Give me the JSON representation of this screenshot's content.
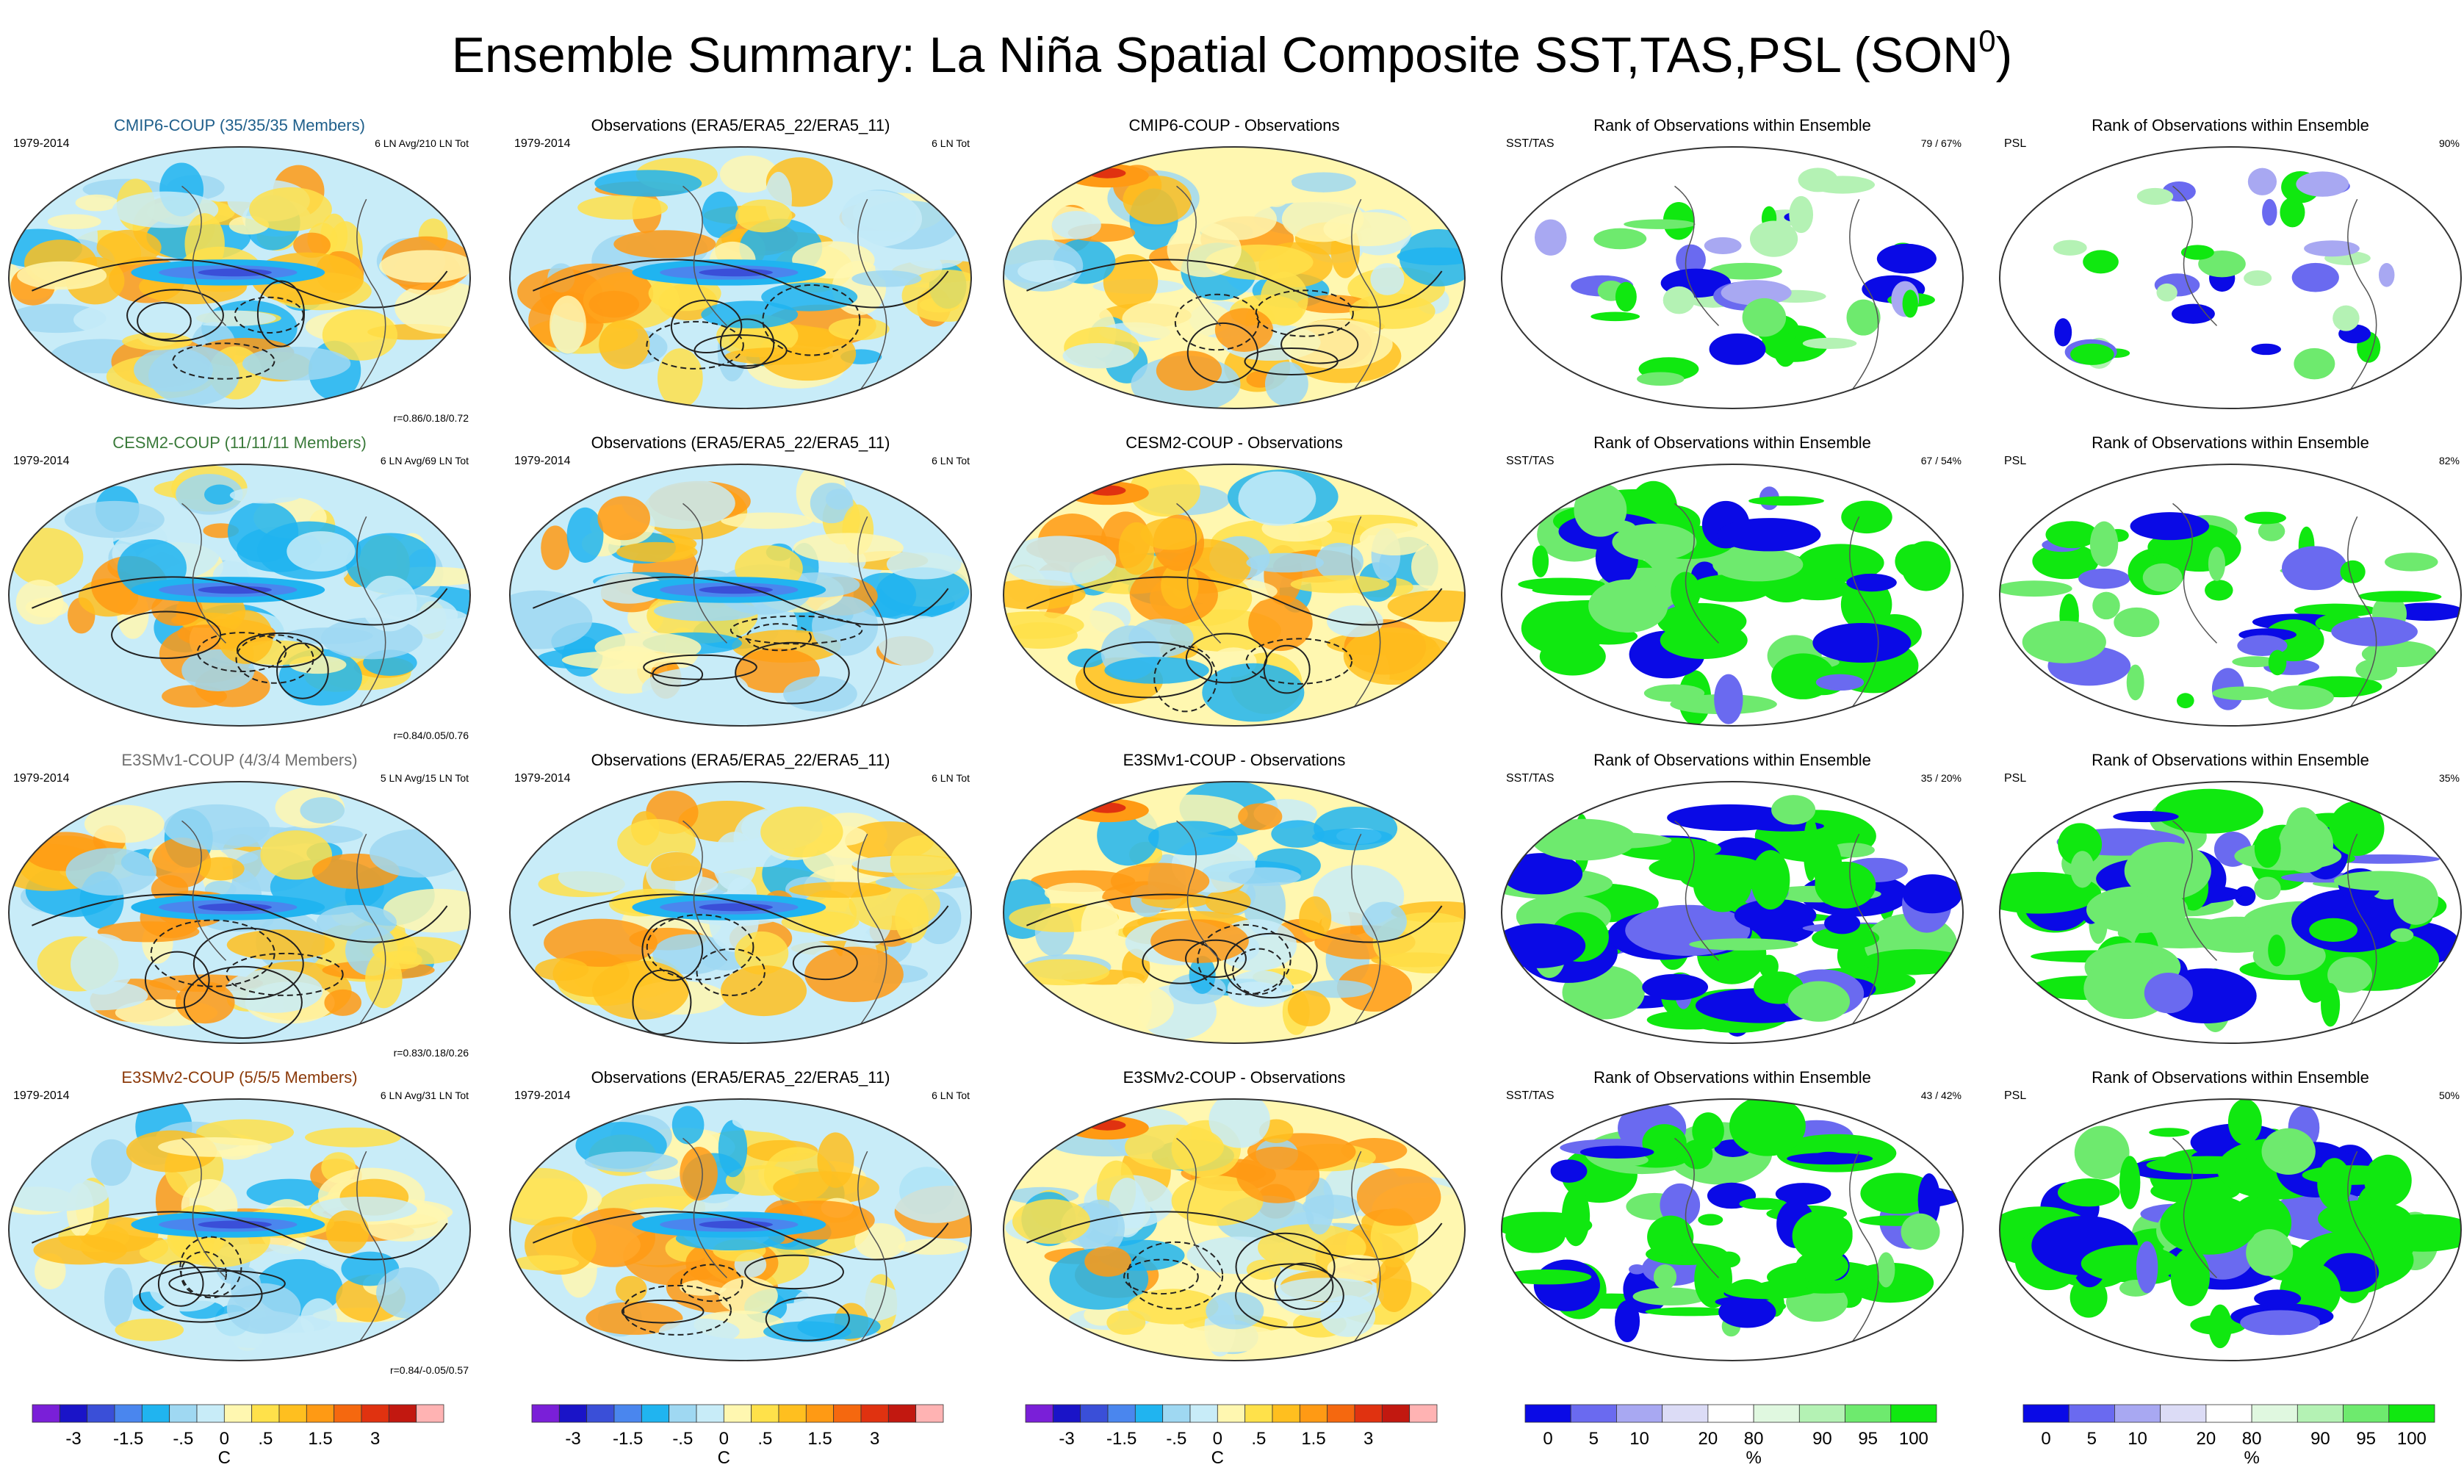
{
  "figure": {
    "title": "Ensemble Summary: La Niña Spatial Composite SST,TAS,PSL (SON",
    "title_superscript": "0",
    "title_close": ")"
  },
  "colors": {
    "temp_scale": [
      "#7a1fd8",
      "#1a14c8",
      "#3a4fd8",
      "#4a86ee",
      "#20b4f0",
      "#9fd8f2",
      "#c8ecf8",
      "#fff7b0",
      "#ffe14a",
      "#ffbf1f",
      "#ff9a14",
      "#f5680f",
      "#e03210",
      "#c21810",
      "#ffb3b3"
    ],
    "rank_scale": [
      "#0a0ae6",
      "#6a6af0",
      "#a8a8f2",
      "#dcdcf6",
      "#ffffff",
      "#e0f8e0",
      "#b4f2b4",
      "#6eea6e",
      "#10e810"
    ],
    "model_cmip6": "#1f5f8b",
    "model_cesm2": "#3a7a3a",
    "model_e3smv1": "#707070",
    "model_e3smv2": "#8b3a0a"
  },
  "rows": [
    {
      "model_title": "CMIP6-COUP (35/35/35 Members)",
      "model_color": "#1f5f8b",
      "period": "1979-2014",
      "model_count": "6 LN Avg/210 LN Tot",
      "corr": "r=0.86/0.18/0.72",
      "obs_title": "Observations (ERA5/ERA5_22/ERA5_11)",
      "obs_period": "1979-2014",
      "obs_count": "6 LN Tot",
      "diff_title": "CMIP6-COUP - Observations",
      "rank_title": "Rank of Observations within Ensemble",
      "rank_var": "SST/TAS",
      "rank_pct": "79 /  67%",
      "psl_title": "Rank of Observations within Ensemble",
      "psl_var": "PSL",
      "psl_pct": "90%"
    },
    {
      "model_title": "CESM2-COUP (11/11/11 Members)",
      "model_color": "#3a7a3a",
      "period": "1979-2014",
      "model_count": "6 LN Avg/69 LN Tot",
      "corr": "r=0.84/0.05/0.76",
      "obs_title": "Observations (ERA5/ERA5_22/ERA5_11)",
      "obs_period": "1979-2014",
      "obs_count": "6 LN Tot",
      "diff_title": "CESM2-COUP - Observations",
      "rank_title": "Rank of Observations within Ensemble",
      "rank_var": "SST/TAS",
      "rank_pct": "67 /  54%",
      "psl_title": "Rank of Observations within Ensemble",
      "psl_var": "PSL",
      "psl_pct": "82%"
    },
    {
      "model_title": "E3SMv1-COUP (4/3/4 Members)",
      "model_color": "#707070",
      "period": "1979-2014",
      "model_count": "5 LN Avg/15 LN Tot",
      "corr": "r=0.83/0.18/0.26",
      "obs_title": "Observations (ERA5/ERA5_22/ERA5_11)",
      "obs_period": "1979-2014",
      "obs_count": "6 LN Tot",
      "diff_title": "E3SMv1-COUP - Observations",
      "rank_title": "Rank of Observations within Ensemble",
      "rank_var": "SST/TAS",
      "rank_pct": "35 /  20%",
      "psl_title": "Rank of Observations within Ensemble",
      "psl_var": "PSL",
      "psl_pct": "35%"
    },
    {
      "model_title": "E3SMv2-COUP (5/5/5 Members)",
      "model_color": "#8b3a0a",
      "period": "1979-2014",
      "model_count": "6 LN Avg/31 LN Tot",
      "corr": "r=0.84/-0.05/0.57",
      "obs_title": "Observations (ERA5/ERA5_22/ERA5_11)",
      "obs_period": "1979-2014",
      "obs_count": "6 LN Tot",
      "diff_title": "E3SMv2-COUP - Observations",
      "rank_title": "Rank of Observations within Ensemble",
      "rank_var": "SST/TAS",
      "rank_pct": "43 /  42%",
      "psl_title": "Rank of Observations within Ensemble",
      "psl_var": "PSL",
      "psl_pct": "50%"
    }
  ],
  "colorbars": {
    "temp": {
      "ticks": [
        "-3",
        "-1.5",
        "-.5",
        "0",
        ".5",
        "1.5",
        "3"
      ],
      "unit": "C"
    },
    "rank": {
      "ticks": [
        "0",
        "5",
        "10",
        "20",
        "80",
        "90",
        "95",
        "100"
      ],
      "unit": "%"
    }
  },
  "chart_data": {
    "type": "heatmap",
    "title": "Ensemble Summary: La Niña Spatial Composite SST,TAS,PSL (SON0)",
    "panels_per_row": [
      "model composite",
      "observations",
      "model - observations",
      "rank SST/TAS",
      "rank PSL"
    ],
    "temp_levels_C": [
      -4,
      -3,
      -2,
      -1.5,
      -1,
      -0.5,
      -0.25,
      0,
      0.25,
      0.5,
      1,
      1.5,
      2,
      3,
      4
    ],
    "rank_levels_pct": [
      0,
      5,
      10,
      20,
      80,
      90,
      95,
      100
    ],
    "rank_summary": [
      {
        "model": "CMIP6-COUP",
        "sst_tas": [
          79,
          67
        ],
        "psl": 90
      },
      {
        "model": "CESM2-COUP",
        "sst_tas": [
          67,
          54
        ],
        "psl": 82
      },
      {
        "model": "E3SMv1-COUP",
        "sst_tas": [
          35,
          20
        ],
        "psl": 35
      },
      {
        "model": "E3SMv2-COUP",
        "sst_tas": [
          43,
          42
        ],
        "psl": 50
      }
    ],
    "pattern_correlations": [
      {
        "model": "CMIP6-COUP",
        "r": [
          0.86,
          0.18,
          0.72
        ]
      },
      {
        "model": "CESM2-COUP",
        "r": [
          0.84,
          0.05,
          0.76
        ]
      },
      {
        "model": "E3SMv1-COUP",
        "r": [
          0.83,
          0.18,
          0.26
        ]
      },
      {
        "model": "E3SMv2-COUP",
        "r": [
          0.84,
          -0.05,
          0.57
        ]
      }
    ]
  }
}
